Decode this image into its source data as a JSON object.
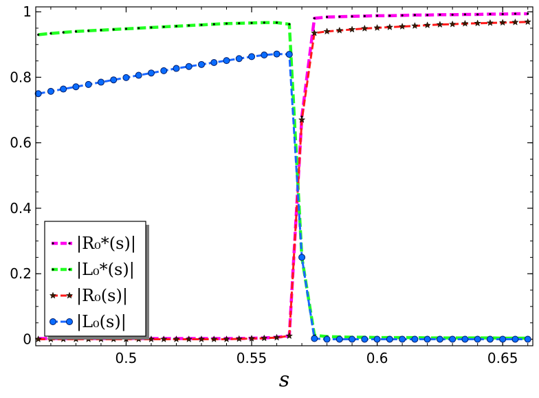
{
  "chart_data": {
    "type": "line",
    "title": "",
    "xlabel": "s",
    "ylabel": "",
    "xlim": [
      0.464,
      0.662
    ],
    "ylim": [
      -0.02,
      1.015
    ],
    "grid": false,
    "legend_placement": "bottom-left",
    "x_ticks": [
      {
        "value": 0.5,
        "label": "0.5"
      },
      {
        "value": 0.55,
        "label": "0.55"
      },
      {
        "value": 0.6,
        "label": "0.6"
      },
      {
        "value": 0.65,
        "label": "0.65"
      }
    ],
    "y_ticks": [
      {
        "value": 0,
        "label": "0"
      },
      {
        "value": 0.2,
        "label": "0.2"
      },
      {
        "value": 0.4,
        "label": "0.4"
      },
      {
        "value": 0.6,
        "label": "0.6"
      },
      {
        "value": 0.8,
        "label": "0.8"
      },
      {
        "value": 1.0,
        "label": "1"
      }
    ],
    "series": [
      {
        "name": "|R₀*(s)|",
        "color": "#ff00ee",
        "line_style": "dashed-thick",
        "marker": "dot",
        "points": [
          [
            0.465,
            0.002
          ],
          [
            0.47,
            0.002
          ],
          [
            0.475,
            0.002
          ],
          [
            0.48,
            0.002
          ],
          [
            0.485,
            0.002
          ],
          [
            0.49,
            0.002
          ],
          [
            0.495,
            0.002
          ],
          [
            0.5,
            0.002
          ],
          [
            0.505,
            0.002
          ],
          [
            0.51,
            0.002
          ],
          [
            0.515,
            0.002
          ],
          [
            0.52,
            0.002
          ],
          [
            0.525,
            0.002
          ],
          [
            0.53,
            0.002
          ],
          [
            0.535,
            0.002
          ],
          [
            0.54,
            0.002
          ],
          [
            0.545,
            0.002
          ],
          [
            0.55,
            0.003
          ],
          [
            0.555,
            0.004
          ],
          [
            0.56,
            0.006
          ],
          [
            0.565,
            0.01
          ],
          [
            0.57,
            0.68
          ],
          [
            0.575,
            0.98
          ],
          [
            0.58,
            0.984
          ],
          [
            0.585,
            0.985
          ],
          [
            0.59,
            0.986
          ],
          [
            0.595,
            0.987
          ],
          [
            0.6,
            0.988
          ],
          [
            0.605,
            0.988
          ],
          [
            0.61,
            0.989
          ],
          [
            0.615,
            0.99
          ],
          [
            0.62,
            0.99
          ],
          [
            0.625,
            0.991
          ],
          [
            0.63,
            0.991
          ],
          [
            0.635,
            0.992
          ],
          [
            0.64,
            0.992
          ],
          [
            0.645,
            0.993
          ],
          [
            0.65,
            0.993
          ],
          [
            0.655,
            0.994
          ],
          [
            0.66,
            0.994
          ]
        ]
      },
      {
        "name": "|L₀*(s)|",
        "color": "#22ff22",
        "line_style": "dashed-thick",
        "marker": "dot",
        "points": [
          [
            0.465,
            0.93
          ],
          [
            0.47,
            0.934
          ],
          [
            0.475,
            0.937
          ],
          [
            0.48,
            0.94
          ],
          [
            0.485,
            0.942
          ],
          [
            0.49,
            0.944
          ],
          [
            0.495,
            0.946
          ],
          [
            0.5,
            0.948
          ],
          [
            0.505,
            0.95
          ],
          [
            0.51,
            0.952
          ],
          [
            0.515,
            0.954
          ],
          [
            0.52,
            0.956
          ],
          [
            0.525,
            0.958
          ],
          [
            0.53,
            0.96
          ],
          [
            0.535,
            0.962
          ],
          [
            0.54,
            0.964
          ],
          [
            0.545,
            0.965
          ],
          [
            0.55,
            0.966
          ],
          [
            0.555,
            0.967
          ],
          [
            0.56,
            0.967
          ],
          [
            0.565,
            0.962
          ],
          [
            0.57,
            0.25
          ],
          [
            0.575,
            0.012
          ],
          [
            0.58,
            0.008
          ],
          [
            0.585,
            0.007
          ],
          [
            0.59,
            0.006
          ],
          [
            0.595,
            0.006
          ],
          [
            0.6,
            0.005
          ],
          [
            0.605,
            0.005
          ],
          [
            0.61,
            0.005
          ],
          [
            0.615,
            0.005
          ],
          [
            0.62,
            0.004
          ],
          [
            0.625,
            0.004
          ],
          [
            0.63,
            0.004
          ],
          [
            0.635,
            0.004
          ],
          [
            0.64,
            0.004
          ],
          [
            0.645,
            0.004
          ],
          [
            0.65,
            0.003
          ],
          [
            0.655,
            0.003
          ],
          [
            0.66,
            0.003
          ]
        ]
      },
      {
        "name": "|R₀(s)|",
        "color": "#ff1a1a",
        "line_style": "dashed",
        "marker": "star",
        "points": [
          [
            0.465,
            0.0
          ],
          [
            0.47,
            0.0
          ],
          [
            0.475,
            0.0
          ],
          [
            0.48,
            0.0
          ],
          [
            0.485,
            0.0
          ],
          [
            0.49,
            0.0
          ],
          [
            0.495,
            0.0
          ],
          [
            0.5,
            0.0
          ],
          [
            0.505,
            0.0
          ],
          [
            0.51,
            0.0
          ],
          [
            0.515,
            0.0
          ],
          [
            0.52,
            0.0
          ],
          [
            0.525,
            0.0
          ],
          [
            0.53,
            0.0
          ],
          [
            0.535,
            0.0
          ],
          [
            0.54,
            0.0
          ],
          [
            0.545,
            0.001
          ],
          [
            0.55,
            0.002
          ],
          [
            0.555,
            0.003
          ],
          [
            0.56,
            0.005
          ],
          [
            0.565,
            0.01
          ],
          [
            0.57,
            0.67
          ],
          [
            0.575,
            0.935
          ],
          [
            0.58,
            0.94
          ],
          [
            0.585,
            0.943
          ],
          [
            0.59,
            0.946
          ],
          [
            0.595,
            0.949
          ],
          [
            0.6,
            0.951
          ],
          [
            0.605,
            0.953
          ],
          [
            0.61,
            0.955
          ],
          [
            0.615,
            0.957
          ],
          [
            0.62,
            0.959
          ],
          [
            0.625,
            0.961
          ],
          [
            0.63,
            0.962
          ],
          [
            0.635,
            0.964
          ],
          [
            0.64,
            0.965
          ],
          [
            0.645,
            0.966
          ],
          [
            0.65,
            0.967
          ],
          [
            0.655,
            0.968
          ],
          [
            0.66,
            0.969
          ]
        ]
      },
      {
        "name": "|L₀(s)|",
        "color": "#1a66ff",
        "line_style": "dashed",
        "marker": "circle",
        "points": [
          [
            0.465,
            0.75
          ],
          [
            0.47,
            0.757
          ],
          [
            0.475,
            0.764
          ],
          [
            0.48,
            0.771
          ],
          [
            0.485,
            0.778
          ],
          [
            0.49,
            0.785
          ],
          [
            0.495,
            0.792
          ],
          [
            0.5,
            0.799
          ],
          [
            0.505,
            0.806
          ],
          [
            0.51,
            0.813
          ],
          [
            0.515,
            0.82
          ],
          [
            0.52,
            0.827
          ],
          [
            0.525,
            0.833
          ],
          [
            0.53,
            0.839
          ],
          [
            0.535,
            0.845
          ],
          [
            0.54,
            0.851
          ],
          [
            0.545,
            0.857
          ],
          [
            0.55,
            0.863
          ],
          [
            0.555,
            0.868
          ],
          [
            0.56,
            0.871
          ],
          [
            0.565,
            0.87
          ],
          [
            0.57,
            0.25
          ],
          [
            0.575,
            0.002
          ],
          [
            0.58,
            0.0
          ],
          [
            0.585,
            0.0
          ],
          [
            0.59,
            0.0
          ],
          [
            0.595,
            0.0
          ],
          [
            0.6,
            0.0
          ],
          [
            0.605,
            0.0
          ],
          [
            0.61,
            0.0
          ],
          [
            0.615,
            0.0
          ],
          [
            0.62,
            0.0
          ],
          [
            0.625,
            0.0
          ],
          [
            0.63,
            0.0
          ],
          [
            0.635,
            0.0
          ],
          [
            0.64,
            0.0
          ],
          [
            0.645,
            0.0
          ],
          [
            0.65,
            0.0
          ],
          [
            0.655,
            0.0
          ],
          [
            0.66,
            0.0
          ]
        ]
      }
    ]
  }
}
